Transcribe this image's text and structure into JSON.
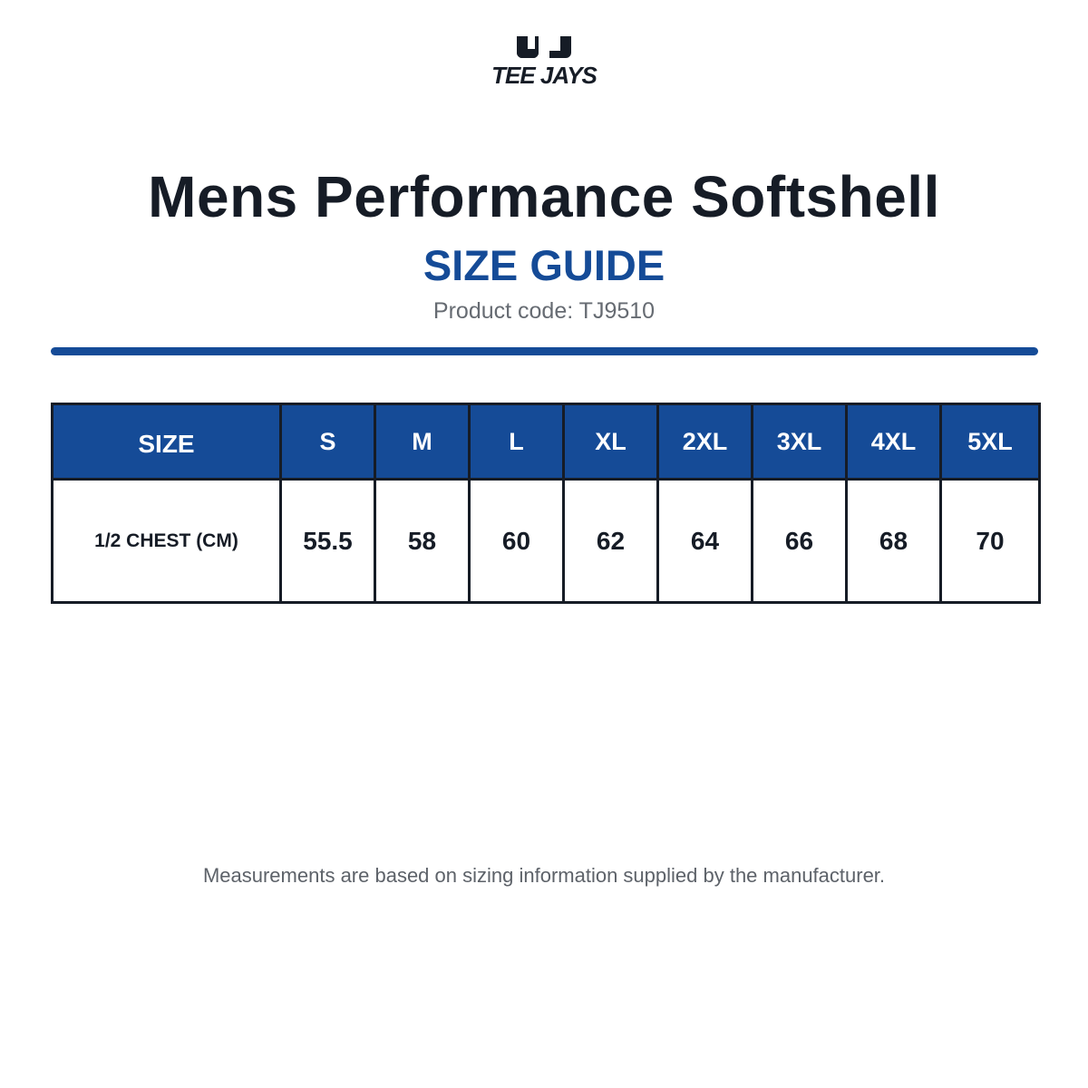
{
  "brand": {
    "logo_text": "TEE JAYS",
    "logo_colors": {
      "mark": "#161c26"
    }
  },
  "header": {
    "title": "Mens Performance Softshell",
    "subtitle": "SIZE GUIDE",
    "product_code": "Product code: TJ9510"
  },
  "colors": {
    "accent": "#154b97",
    "text_dark": "#161c26",
    "text_muted": "#666b72",
    "background": "#ffffff"
  },
  "size_table": {
    "header_label": "SIZE",
    "sizes": [
      "S",
      "M",
      "L",
      "XL",
      "2XL",
      "3XL",
      "4XL",
      "5XL"
    ],
    "rows": [
      {
        "label": "1/2 CHEST (CM)",
        "values": [
          "55.5",
          "58",
          "60",
          "62",
          "64",
          "66",
          "68",
          "70"
        ]
      }
    ]
  },
  "footer": {
    "note": "Measurements are based on sizing information supplied by the manufacturer."
  }
}
